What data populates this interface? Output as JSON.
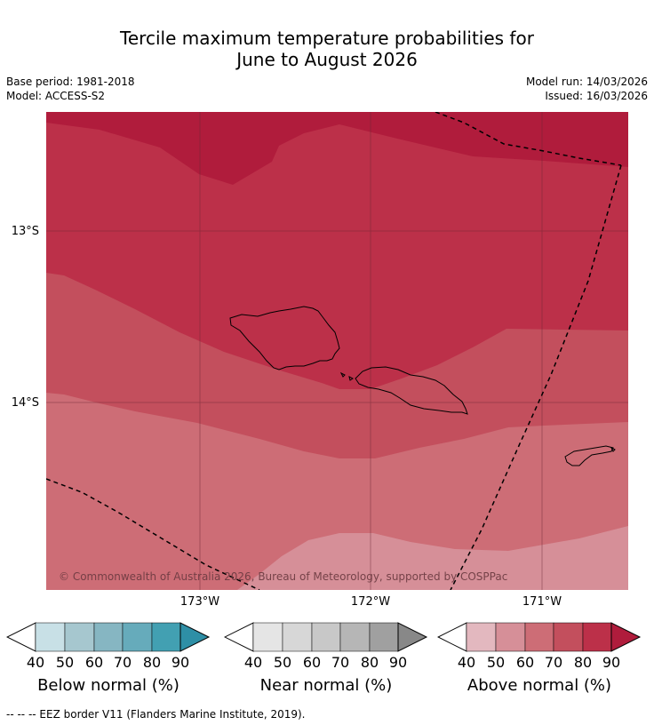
{
  "title_line1": "Tercile maximum temperature probabilities for",
  "title_line2": "June to August 2026",
  "meta": {
    "base_period": "Base period: 1981-2018",
    "model": "Model: ACCESS-S2",
    "model_run": "Model run: 14/03/2026",
    "issued": "Issued: 16/03/2026"
  },
  "map": {
    "lat_labels": [
      "13°S",
      "14°S"
    ],
    "lon_labels": [
      "173°W",
      "172°W",
      "171°W"
    ],
    "copyright": "© Commonwealth of Australia 2026, Bureau of Meteorology, supported by COSPPac"
  },
  "colorbars": [
    {
      "label": "Below normal (%)",
      "ticks": [
        "40",
        "50",
        "60",
        "70",
        "80",
        "90"
      ],
      "colors": [
        "#ffffff",
        "#c8e0e6",
        "#a6c7cf",
        "#86b6c2",
        "#66abbb",
        "#42a0b2",
        "#2e8fa6"
      ]
    },
    {
      "label": "Near normal (%)",
      "ticks": [
        "40",
        "50",
        "60",
        "70",
        "80",
        "90"
      ],
      "colors": [
        "#ffffff",
        "#e5e5e5",
        "#d7d7d7",
        "#c8c8c8",
        "#b6b6b6",
        "#a0a0a0",
        "#888888"
      ]
    },
    {
      "label": "Above normal (%)",
      "ticks": [
        "40",
        "50",
        "60",
        "70",
        "80",
        "90"
      ],
      "colors": [
        "#ffffff",
        "#e3b8bf",
        "#d68f98",
        "#cd6d76",
        "#c34f5d",
        "#bc3049",
        "#b01c3c"
      ]
    }
  ],
  "footnote": "--  --  -- EEZ border V11 (Flanders Marine Institute, 2019)."
}
